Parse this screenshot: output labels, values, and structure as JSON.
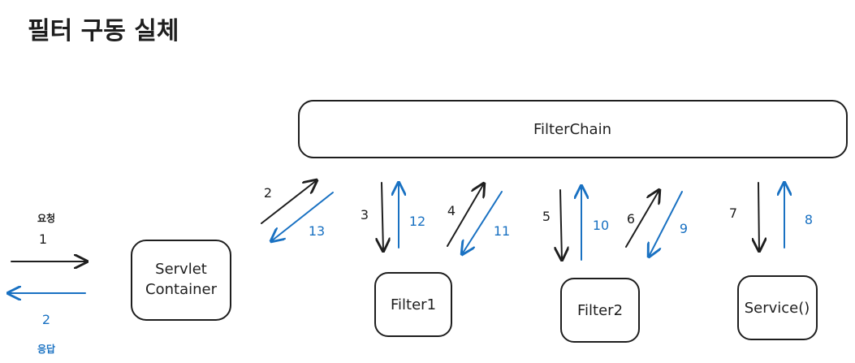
{
  "title": "필터 구동 실체",
  "nodes": {
    "filter_chain": "FilterChain",
    "servlet_container": [
      "Servlet",
      "Container"
    ],
    "filter1": "Filter1",
    "filter2": "Filter2",
    "service": "Service()"
  },
  "request": {
    "label": "요청",
    "step": "1"
  },
  "response": {
    "label": "응답",
    "step": "2"
  },
  "steps": {
    "s2": "2",
    "s3": "3",
    "s4": "4",
    "s5": "5",
    "s6": "6",
    "s7": "7",
    "s8": "8",
    "s9": "9",
    "s10": "10",
    "s11": "11",
    "s12": "12",
    "s13": "13"
  },
  "colors": {
    "request": "#1e1e1e",
    "response": "#1971c2"
  }
}
